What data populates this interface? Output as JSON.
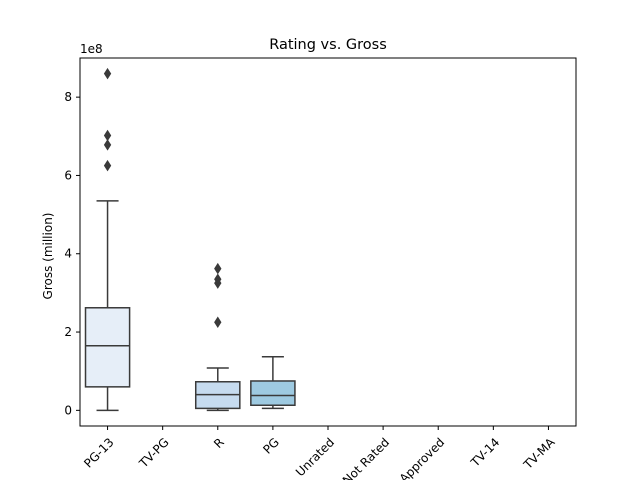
{
  "chart_data": {
    "type": "box",
    "title": "Rating vs. Gross",
    "xlabel": "",
    "ylabel": "Gross (million)",
    "y_offset_label": "1e8",
    "ylim": [
      -0.4,
      9.0
    ],
    "yticks": [
      0,
      2,
      4,
      6,
      8
    ],
    "grid": false,
    "categories": [
      "PG-13",
      "TV-PG",
      "R",
      "PG",
      "Unrated",
      "Not Rated",
      "Approved",
      "TV-14",
      "TV-MA"
    ],
    "boxes": [
      {
        "category": "PG-13",
        "whisker_low": 0.0,
        "q1": 0.6,
        "median": 1.65,
        "q3": 2.62,
        "whisker_high": 5.35,
        "outliers": [
          6.25,
          6.78,
          7.02,
          8.6
        ],
        "color": "#e6eef8"
      },
      {
        "category": "R",
        "whisker_low": 0.0,
        "q1": 0.05,
        "median": 0.4,
        "q3": 0.73,
        "whisker_high": 1.08,
        "outliers": [
          2.25,
          3.25,
          3.35,
          3.62
        ],
        "color": "#c6dbef"
      },
      {
        "category": "PG",
        "whisker_low": 0.05,
        "q1": 0.13,
        "median": 0.38,
        "q3": 0.75,
        "whisker_high": 1.37,
        "outliers": [],
        "color": "#9ecae1"
      }
    ]
  }
}
